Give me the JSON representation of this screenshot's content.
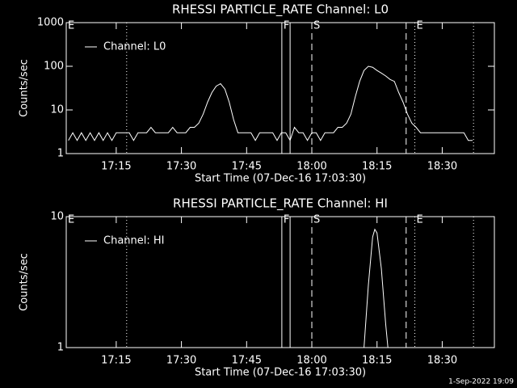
{
  "chart_data": [
    {
      "type": "line",
      "title": "RHESSI PARTICLE_RATE Channel: L0",
      "x_label": "Start Time (07-Dec-16 17:03:30)",
      "y_label": "Counts/sec",
      "log_y": true,
      "xlim": [
        3.5,
        102
      ],
      "xticks": [
        {
          "value": 15,
          "label": "17:15"
        },
        {
          "value": 30,
          "label": "17:30"
        },
        {
          "value": 45,
          "label": "17:45"
        },
        {
          "value": 60,
          "label": "18:00"
        },
        {
          "value": 75,
          "label": "18:15"
        },
        {
          "value": 90,
          "label": "18:30"
        }
      ],
      "ylim": [
        1,
        1000
      ],
      "yticks": [
        1,
        10,
        100,
        1000
      ],
      "legend": "upper left",
      "color": "#ffffff",
      "x": [
        4,
        5,
        6,
        7,
        8,
        9,
        10,
        11,
        12,
        13,
        14,
        15,
        16,
        17,
        18,
        19,
        20,
        21,
        22,
        23,
        24,
        25,
        26,
        27,
        28,
        29,
        30,
        31,
        32,
        33,
        34,
        35,
        36,
        37,
        38,
        39,
        40,
        41,
        42,
        43,
        44,
        45,
        46,
        47,
        48,
        49,
        50,
        51,
        52,
        53,
        54,
        55,
        56,
        57,
        58,
        59,
        60,
        61,
        62,
        63,
        64,
        65,
        66,
        67,
        68,
        69,
        70,
        71,
        72,
        73,
        74,
        75,
        76,
        77,
        78,
        79,
        80,
        81,
        82,
        83,
        84,
        85,
        86,
        87,
        88,
        89,
        90,
        91,
        92,
        93,
        94,
        95,
        96,
        97
      ],
      "series": [
        {
          "name": "Channel: L0",
          "color": "#ffffff",
          "values": [
            2,
            3,
            2,
            3,
            2,
            3,
            2,
            3,
            2,
            3,
            2,
            3,
            3,
            3,
            3,
            2,
            3,
            3,
            3,
            4,
            3,
            3,
            3,
            3,
            4,
            3,
            3,
            3,
            4,
            4,
            5,
            8,
            15,
            25,
            35,
            40,
            30,
            15,
            6,
            3,
            3,
            3,
            3,
            2,
            3,
            3,
            3,
            3,
            2,
            3,
            3,
            2,
            4,
            3,
            3,
            2,
            3,
            3,
            2,
            3,
            3,
            3,
            4,
            4,
            5,
            8,
            20,
            45,
            80,
            100,
            95,
            80,
            70,
            60,
            50,
            45,
            25,
            15,
            8,
            5,
            4,
            3,
            3,
            3,
            3,
            3,
            3,
            3,
            3,
            3,
            3,
            3,
            2,
            2
          ]
        }
      ],
      "markers": [
        {
          "x": 3.5,
          "style": "dotted",
          "label": "E"
        },
        {
          "x": 17.4,
          "style": "dotted"
        },
        {
          "x": 53.1,
          "style": "solid",
          "label": "F"
        },
        {
          "x": 55,
          "style": "solid"
        },
        {
          "x": 60,
          "style": "dashed",
          "label": "S"
        },
        {
          "x": 81.7,
          "style": "dashed"
        },
        {
          "x": 83.7,
          "style": "dotted",
          "label": "E"
        },
        {
          "x": 97.2,
          "style": "dotted"
        }
      ]
    },
    {
      "type": "line",
      "title": "RHESSI PARTICLE_RATE Channel: HI",
      "x_label": "Start Time (07-Dec-16 17:03:30)",
      "y_label": "Counts/sec",
      "log_y": true,
      "xlim": [
        3.5,
        102
      ],
      "xticks": [
        {
          "value": 15,
          "label": "17:15"
        },
        {
          "value": 30,
          "label": "17:30"
        },
        {
          "value": 45,
          "label": "17:45"
        },
        {
          "value": 60,
          "label": "18:00"
        },
        {
          "value": 75,
          "label": "18:15"
        },
        {
          "value": 90,
          "label": "18:30"
        }
      ],
      "ylim": [
        1,
        10
      ],
      "yticks": [
        1,
        10
      ],
      "legend": "upper left",
      "color": "#ffffff",
      "x": [
        72,
        73,
        74,
        74.5,
        75,
        76,
        77,
        77.5
      ],
      "series": [
        {
          "name": "Channel: HI",
          "color": "#ffffff",
          "values": [
            1,
            3,
            7,
            8,
            7.5,
            4,
            1.5,
            1
          ]
        }
      ],
      "markers": [
        {
          "x": 3.5,
          "style": "dotted",
          "label": "E"
        },
        {
          "x": 17.4,
          "style": "dotted"
        },
        {
          "x": 53.1,
          "style": "solid",
          "label": "F"
        },
        {
          "x": 55,
          "style": "solid"
        },
        {
          "x": 60,
          "style": "dashed",
          "label": "S"
        },
        {
          "x": 81.7,
          "style": "dashed"
        },
        {
          "x": 83.7,
          "style": "dotted",
          "label": "E"
        },
        {
          "x": 97.2,
          "style": "dotted"
        }
      ]
    }
  ],
  "footer": "1-Sep-2022 19:09"
}
